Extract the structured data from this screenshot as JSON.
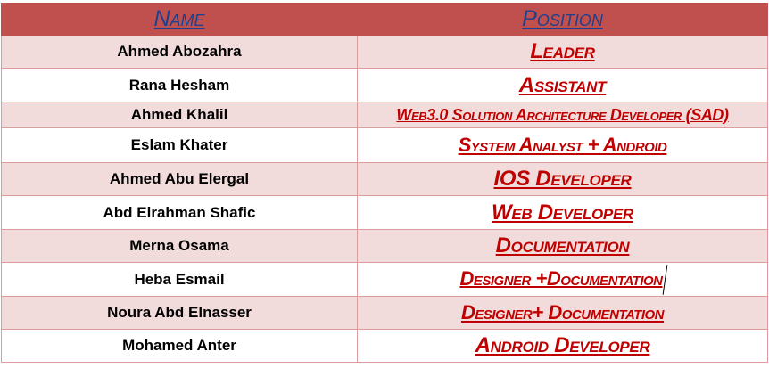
{
  "table": {
    "headers": {
      "name": "Name",
      "position": "Position"
    },
    "rows": [
      {
        "name": "Ahmed Abozahra",
        "position": "Leader"
      },
      {
        "name": "Rana Hesham",
        "position": "Assistant"
      },
      {
        "name": "Ahmed Khalil",
        "position": "Web3.0 Solution Architecture Developer (SAD)"
      },
      {
        "name": "Eslam Khater",
        "position": "System Analyst + Android"
      },
      {
        "name": "Ahmed Abu Elergal",
        "position": "IOS Developer"
      },
      {
        "name": "Abd Elrahman Shafic",
        "position": "Web Developer"
      },
      {
        "name": "Merna Osama",
        "position": "Documentation"
      },
      {
        "name": "Heba Esmail",
        "position": "Designer +Documentation"
      },
      {
        "name": "Noura Abd Elnasser",
        "position": "Designer+ Documentation"
      },
      {
        "name": "Mohamed Anter",
        "position": "Android Developer"
      }
    ]
  },
  "colors": {
    "header_background": "#c0504d",
    "header_text": "#1f3f8f",
    "band_row": "#f2dcdb",
    "position_text": "#c00000"
  }
}
